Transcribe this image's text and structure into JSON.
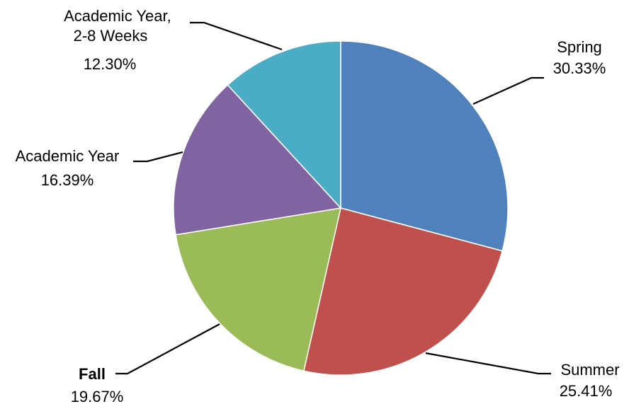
{
  "chart_data": {
    "type": "pie",
    "title": "",
    "series": [
      {
        "values": [
          30.33,
          25.41,
          19.67,
          16.39,
          12.3
        ],
        "labels": [
          "Spring",
          "Summer",
          "Fall",
          "Academic Year",
          "Academic Year, 2-8 Weeks"
        ],
        "value_labels": [
          "30.33%",
          "25.41%",
          "19.67%",
          "16.39%",
          "12.30%"
        ],
        "colors": [
          "#4F81BD",
          "#C0504D",
          "#9BBB59",
          "#8064A2",
          "#4BACC6"
        ]
      }
    ],
    "start_angle_deg": 0,
    "direction": "clockwise",
    "legend": "none",
    "data_labels": "outside-with-leader-lines"
  }
}
